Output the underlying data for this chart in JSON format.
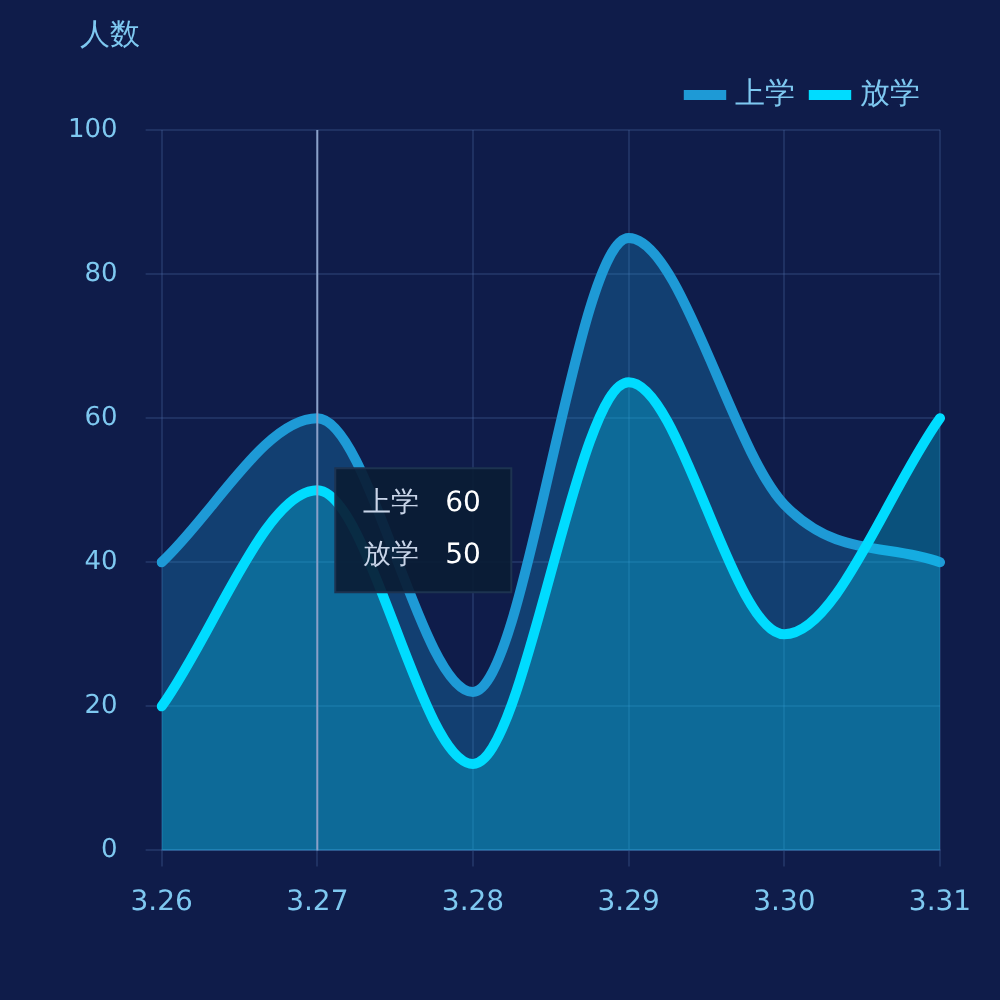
{
  "chart_data": {
    "type": "area",
    "ylabel": "人数",
    "categories": [
      "3.26",
      "3.27",
      "3.28",
      "3.29",
      "3.30",
      "3.31"
    ],
    "series": [
      {
        "name": "上学",
        "color": "#1e9ad6",
        "values": [
          40,
          60,
          22,
          85,
          48,
          40
        ]
      },
      {
        "name": "放学",
        "color": "#00dcff",
        "values": [
          20,
          50,
          12,
          65,
          30,
          60
        ]
      }
    ],
    "ylim": [
      0,
      100
    ],
    "yticks": [
      0,
      20,
      40,
      60,
      80,
      100
    ],
    "grid": true,
    "legend": "top right",
    "marker": "none",
    "line_style": "solid",
    "ref_lines": [
      {
        "axis": "x",
        "value": "3.27",
        "color": "#8aa0c8"
      }
    ],
    "annotations": [
      "上学  60",
      "放学  50"
    ]
  }
}
